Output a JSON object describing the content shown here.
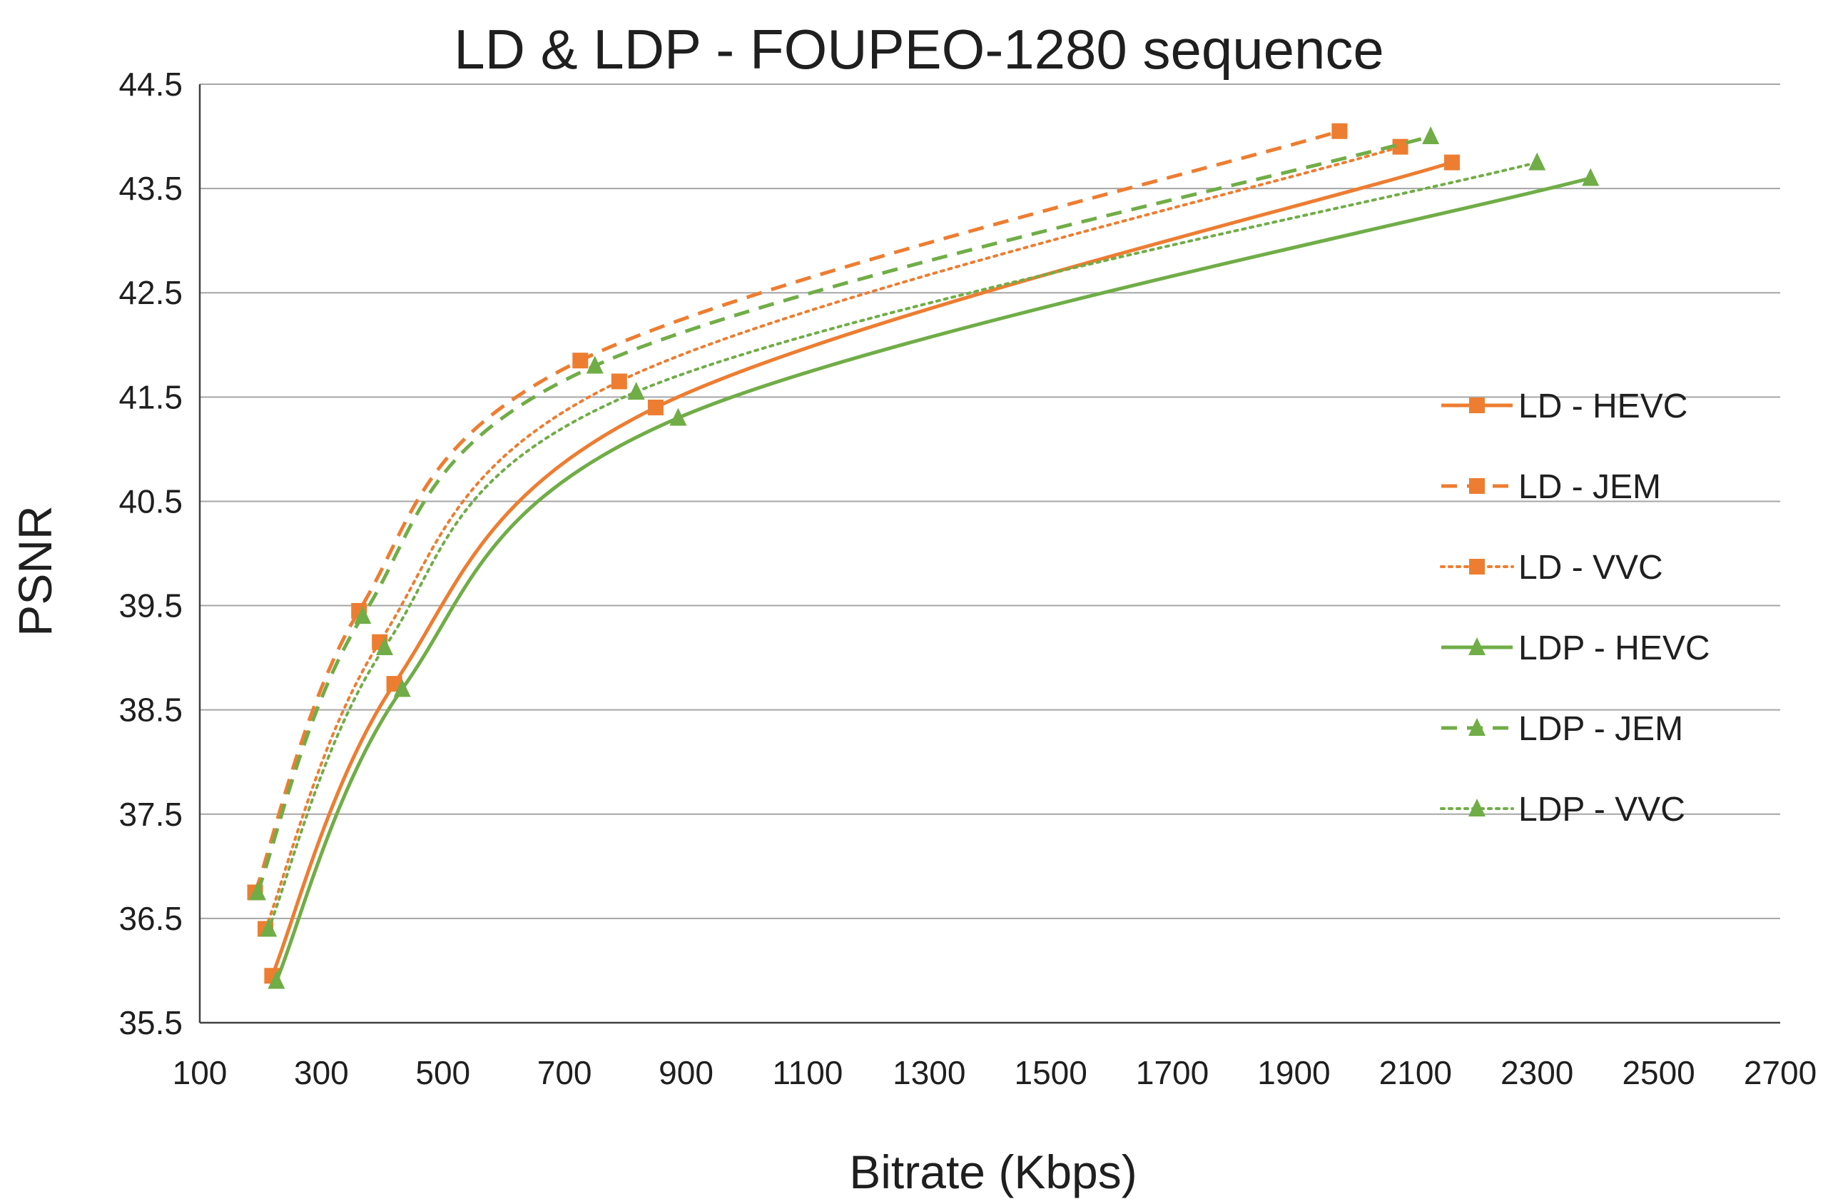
{
  "chart_data": {
    "type": "line",
    "title": "LD & LDP - FOUPEO-1280 sequence",
    "xlabel": "Bitrate (Kbps)",
    "ylabel": "PSNR",
    "xlim": [
      100,
      2700
    ],
    "ylim": [
      35.5,
      44.5
    ],
    "xticks": [
      "100",
      "300",
      "500",
      "700",
      "900",
      "1100",
      "1300",
      "1500",
      "1700",
      "1900",
      "2100",
      "2300",
      "2500",
      "2700"
    ],
    "yticks": [
      "35.5",
      "36.5",
      "37.5",
      "38.5",
      "39.5",
      "40.5",
      "41.5",
      "42.5",
      "43.5",
      "44.5"
    ],
    "grid": "horizontal",
    "legend_position": "right",
    "series": [
      {
        "name": "LD - HEVC",
        "color": "#ED7D31",
        "dash": "solid",
        "marker": "square",
        "x": [
          219,
          420,
          850,
          2160
        ],
        "y": [
          35.95,
          38.75,
          41.4,
          43.75
        ]
      },
      {
        "name": "LD - JEM",
        "color": "#ED7D31",
        "dash": "dashed",
        "marker": "square",
        "x": [
          191,
          362,
          726,
          1975
        ],
        "y": [
          36.75,
          39.45,
          41.85,
          44.05
        ]
      },
      {
        "name": "LD - VVC",
        "color": "#ED7D31",
        "dash": "dotted",
        "marker": "square",
        "x": [
          208,
          396,
          790,
          2075
        ],
        "y": [
          36.4,
          39.15,
          41.65,
          43.9
        ]
      },
      {
        "name": "LDP - HEVC",
        "color": "#70AD47",
        "dash": "solid",
        "marker": "triangle",
        "x": [
          226,
          433,
          887,
          2388
        ],
        "y": [
          35.9,
          38.7,
          41.3,
          43.6
        ]
      },
      {
        "name": "LDP - JEM",
        "color": "#70AD47",
        "dash": "dashed",
        "marker": "triangle",
        "x": [
          195,
          368,
          750,
          2125
        ],
        "y": [
          36.75,
          39.4,
          41.8,
          44.0
        ]
      },
      {
        "name": "LDP - VVC",
        "color": "#70AD47",
        "dash": "dotted",
        "marker": "triangle",
        "x": [
          213,
          404,
          818,
          2300
        ],
        "y": [
          36.4,
          39.1,
          41.55,
          43.75
        ]
      }
    ]
  }
}
